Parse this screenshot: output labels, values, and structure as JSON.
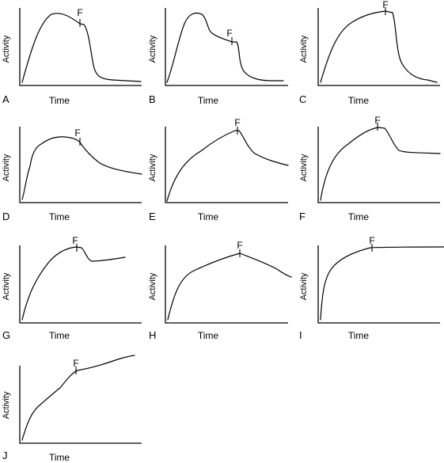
{
  "axis_labels": {
    "x": "Time",
    "y": "Activity"
  },
  "marker_label": "F",
  "panels": [
    {
      "id": "A",
      "letter": "A"
    },
    {
      "id": "B",
      "letter": "B"
    },
    {
      "id": "C",
      "letter": "C"
    },
    {
      "id": "D",
      "letter": "D"
    },
    {
      "id": "E",
      "letter": "E"
    },
    {
      "id": "F",
      "letter": "F"
    },
    {
      "id": "G",
      "letter": "G"
    },
    {
      "id": "H",
      "letter": "H"
    },
    {
      "id": "I",
      "letter": "I"
    },
    {
      "id": "J",
      "letter": "J"
    }
  ]
}
